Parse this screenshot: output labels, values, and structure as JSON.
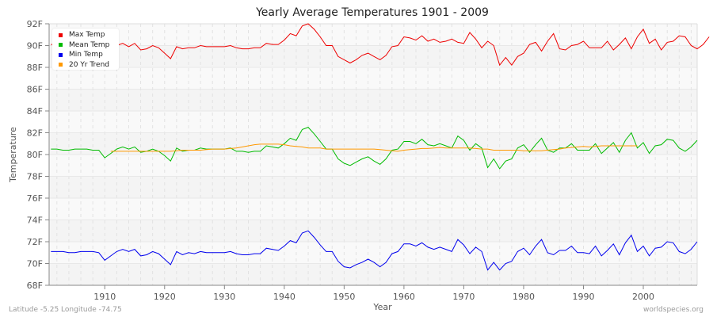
{
  "title": "Yearly Average Temperatures 1901 - 2009",
  "footer": {
    "location": "Latitude -5.25 Longitude -74.75",
    "credit": "worldspecies.org"
  },
  "axes": {
    "xlabel": "Year",
    "ylabel": "Temperature",
    "yticks": [
      "68F",
      "70F",
      "72F",
      "74F",
      "76F",
      "78F",
      "80F",
      "82F",
      "84F",
      "86F",
      "88F",
      "90F",
      "92F"
    ],
    "xticks": [
      "1910",
      "1920",
      "1930",
      "1940",
      "1950",
      "1960",
      "1970",
      "1980",
      "1990",
      "2000"
    ]
  },
  "legend": [
    {
      "label": "Max Temp",
      "color": "#ee0000"
    },
    {
      "label": "Mean Temp",
      "color": "#00bb00"
    },
    {
      "label": "Min Temp",
      "color": "#0000ee"
    },
    {
      "label": "20 Yr Trend",
      "color": "#ff9900"
    }
  ],
  "chart_data": {
    "type": "line",
    "title": "Yearly Average Temperatures 1901 - 2009",
    "xlabel": "Year",
    "ylabel": "Temperature",
    "ylim": [
      68,
      92
    ],
    "xlim": [
      1901,
      2009
    ],
    "grid": true,
    "legend_position": "top-left",
    "x_start": 1901,
    "series": [
      {
        "name": "Max Temp",
        "color": "#ee0000",
        "values": [
          90.1,
          90.1,
          90.1,
          90.1,
          90.1,
          90.1,
          90.1,
          90.1,
          90.1,
          90.2,
          90.1,
          90.0,
          90.2,
          89.9,
          90.2,
          89.6,
          89.7,
          90.0,
          89.8,
          89.3,
          88.8,
          89.9,
          89.7,
          89.8,
          89.8,
          90.0,
          89.9,
          89.9,
          89.9,
          89.9,
          90.0,
          89.8,
          89.7,
          89.7,
          89.8,
          89.8,
          90.2,
          90.1,
          90.1,
          90.5,
          91.1,
          90.9,
          91.8,
          92.0,
          91.5,
          90.8,
          90.0,
          90.0,
          89.0,
          88.7,
          88.4,
          88.7,
          89.1,
          89.3,
          89.0,
          88.7,
          89.1,
          89.9,
          90.0,
          90.8,
          90.7,
          90.5,
          90.9,
          90.4,
          90.6,
          90.3,
          90.4,
          90.6,
          90.3,
          90.2,
          91.2,
          90.6,
          89.8,
          90.4,
          90.0,
          88.2,
          88.9,
          88.2,
          89.0,
          89.3,
          90.1,
          90.3,
          89.5,
          90.4,
          91.1,
          89.7,
          89.6,
          90.0,
          90.1,
          90.4,
          89.8,
          89.8,
          89.8,
          90.4,
          89.6,
          90.1,
          90.7,
          89.7,
          90.8,
          91.5,
          90.2,
          90.6,
          89.6,
          90.3,
          90.4,
          90.9,
          90.8,
          90.0,
          89.7,
          90.1,
          90.8
        ]
      },
      {
        "name": "Mean Temp",
        "color": "#00bb00",
        "values": [
          80.5,
          80.5,
          80.4,
          80.4,
          80.5,
          80.5,
          80.5,
          80.4,
          80.4,
          79.7,
          80.1,
          80.5,
          80.7,
          80.5,
          80.7,
          80.2,
          80.3,
          80.5,
          80.3,
          79.9,
          79.4,
          80.6,
          80.3,
          80.4,
          80.4,
          80.6,
          80.5,
          80.5,
          80.5,
          80.5,
          80.6,
          80.3,
          80.3,
          80.2,
          80.3,
          80.3,
          80.8,
          80.7,
          80.6,
          81.0,
          81.5,
          81.3,
          82.3,
          82.5,
          81.9,
          81.2,
          80.5,
          80.5,
          79.6,
          79.2,
          79.0,
          79.3,
          79.6,
          79.8,
          79.4,
          79.1,
          79.6,
          80.4,
          80.5,
          81.2,
          81.2,
          81.0,
          81.4,
          80.9,
          80.8,
          81.0,
          80.8,
          80.6,
          81.7,
          81.3,
          80.4,
          81.0,
          80.6,
          78.8,
          79.6,
          78.7,
          79.4,
          79.6,
          80.6,
          80.9,
          80.2,
          80.9,
          81.5,
          80.4,
          80.2,
          80.6,
          80.6,
          81.0,
          80.4,
          80.4,
          80.4,
          81.0,
          80.1,
          80.6,
          81.1,
          80.2,
          81.3,
          82.0,
          80.6,
          81.1,
          80.1,
          80.8,
          80.9,
          81.4,
          81.3,
          80.6,
          80.3,
          80.7,
          81.3
        ]
      },
      {
        "name": "Min Temp",
        "color": "#0000ee",
        "values": [
          71.1,
          71.1,
          71.1,
          71.0,
          71.0,
          71.1,
          71.1,
          71.1,
          71.0,
          70.3,
          70.7,
          71.1,
          71.3,
          71.1,
          71.3,
          70.7,
          70.8,
          71.1,
          70.9,
          70.4,
          69.9,
          71.1,
          70.8,
          71.0,
          70.9,
          71.1,
          71.0,
          71.0,
          71.0,
          71.0,
          71.1,
          70.9,
          70.8,
          70.8,
          70.9,
          70.9,
          71.4,
          71.3,
          71.2,
          71.6,
          72.1,
          71.9,
          72.8,
          73.0,
          72.4,
          71.7,
          71.1,
          71.1,
          70.2,
          69.7,
          69.6,
          69.9,
          70.1,
          70.4,
          70.1,
          69.7,
          70.1,
          70.9,
          71.1,
          71.8,
          71.8,
          71.6,
          71.9,
          71.5,
          71.3,
          71.5,
          71.3,
          71.1,
          72.2,
          71.7,
          70.9,
          71.5,
          71.1,
          69.4,
          70.1,
          69.4,
          70.0,
          70.2,
          71.1,
          71.4,
          70.8,
          71.6,
          72.2,
          71.0,
          70.8,
          71.2,
          71.2,
          71.6,
          71.0,
          71.0,
          70.9,
          71.6,
          70.7,
          71.2,
          71.8,
          70.8,
          71.9,
          72.6,
          71.1,
          71.6,
          70.7,
          71.4,
          71.5,
          72.0,
          71.9,
          71.1,
          70.9,
          71.3,
          72.0
        ]
      },
      {
        "name": "20 Yr Trend",
        "color": "#ff9900",
        "x_start": 1911,
        "values": [
          80.3,
          80.3,
          80.3,
          80.3,
          80.3,
          80.3,
          80.3,
          80.3,
          80.3,
          80.3,
          80.3,
          80.35,
          80.4,
          80.4,
          80.4,
          80.4,
          80.45,
          80.5,
          80.5,
          80.5,
          80.55,
          80.6,
          80.7,
          80.8,
          80.9,
          80.95,
          80.95,
          80.95,
          80.95,
          80.9,
          80.8,
          80.75,
          80.7,
          80.6,
          80.6,
          80.6,
          80.5,
          80.5,
          80.5,
          80.5,
          80.5,
          80.5,
          80.5,
          80.5,
          80.5,
          80.45,
          80.4,
          80.35,
          80.3,
          80.4,
          80.45,
          80.5,
          80.55,
          80.55,
          80.6,
          80.65,
          80.6,
          80.6,
          80.6,
          80.6,
          80.6,
          80.55,
          80.5,
          80.5,
          80.4,
          80.4,
          80.4,
          80.4,
          80.4,
          80.35,
          80.35,
          80.35,
          80.35,
          80.4,
          80.45,
          80.5,
          80.6,
          80.65,
          80.7,
          80.75,
          80.7,
          80.75,
          80.8,
          80.8,
          80.8,
          80.8,
          80.8,
          80.8,
          80.8
        ]
      }
    ]
  }
}
